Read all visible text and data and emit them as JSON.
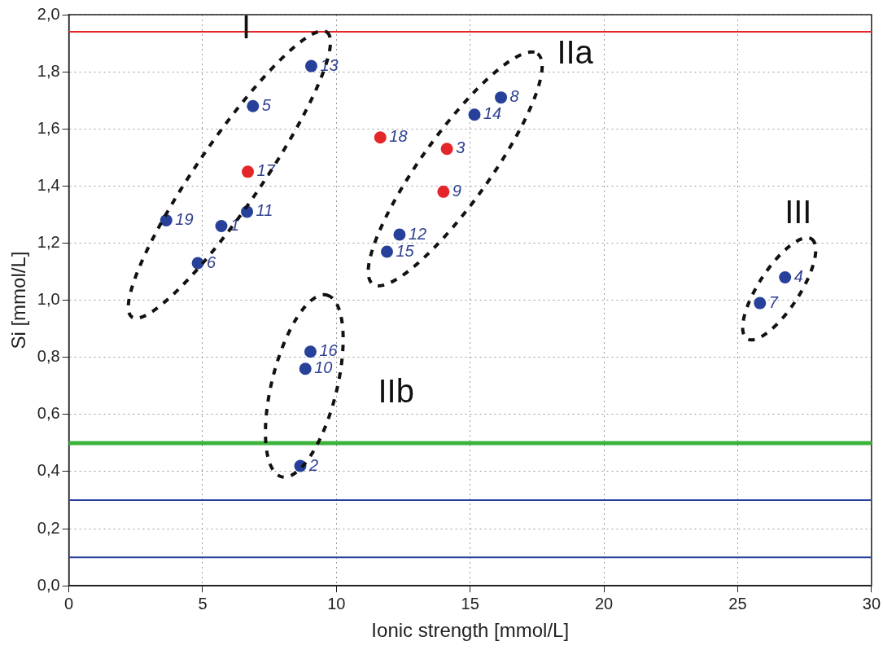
{
  "chart_data": {
    "type": "scatter",
    "xlabel": "Ionic strength [mmol/L]",
    "ylabel": "Si [mmol/L]",
    "xlim": [
      0,
      30
    ],
    "xticks": [
      0,
      5,
      10,
      15,
      20,
      25,
      30
    ],
    "ylim": [
      0,
      2.0
    ],
    "yticks": [
      {
        "value": 0,
        "label": "0,0"
      },
      {
        "value": 0.2,
        "label": "0,2"
      },
      {
        "value": 0.4,
        "label": "0,4"
      },
      {
        "value": 0.6,
        "label": "0,6"
      },
      {
        "value": 0.8,
        "label": "0,8"
      },
      {
        "value": 1.0,
        "label": "1,0"
      },
      {
        "value": 1.2,
        "label": "1,2"
      },
      {
        "value": 1.4,
        "label": "1,4"
      },
      {
        "value": 1.6,
        "label": "1,6"
      },
      {
        "value": 1.8,
        "label": "1,8"
      },
      {
        "value": 2.0,
        "label": "2,0"
      }
    ],
    "grid": true,
    "legend": false,
    "marker": "circle",
    "series": [
      {
        "color": "#27419a",
        "x": [
          9.06,
          6.88,
          3.64,
          5.7,
          6.66,
          4.82,
          9.03,
          8.84,
          8.65,
          15.16,
          16.15,
          12.36,
          11.89,
          26.77,
          25.83
        ],
        "values": [
          1.82,
          1.68,
          1.28,
          1.26,
          1.31,
          1.13,
          0.82,
          0.76,
          0.42,
          1.65,
          1.71,
          1.23,
          1.17,
          1.08,
          0.99
        ]
      },
      {
        "color": "#e4262a",
        "x": [
          6.69,
          11.64,
          14.13,
          14.0
        ],
        "values": [
          1.45,
          1.57,
          1.53,
          1.38
        ]
      }
    ],
    "ref_lines": [
      {
        "axis": "y",
        "value": 1.94,
        "color": "#e4262a"
      },
      {
        "axis": "y",
        "value": 0.5,
        "color": "#3cb43c"
      },
      {
        "axis": "y",
        "value": 0.3,
        "color": "#27419a"
      },
      {
        "axis": "y",
        "value": 0.1,
        "color": "#27419a"
      }
    ],
    "annotations": [
      "I",
      "IIa",
      "IIb",
      "III",
      {
        "text": "13",
        "x": 9.06,
        "y": 1.82
      },
      {
        "text": "5",
        "x": 6.88,
        "y": 1.68
      },
      {
        "text": "19",
        "x": 3.64,
        "y": 1.28
      },
      {
        "text": "1",
        "x": 5.7,
        "y": 1.26
      },
      {
        "text": "11",
        "x": 6.66,
        "y": 1.31
      },
      {
        "text": "6",
        "x": 4.82,
        "y": 1.13
      },
      {
        "text": "16",
        "x": 9.03,
        "y": 0.82
      },
      {
        "text": "10",
        "x": 8.84,
        "y": 0.76
      },
      {
        "text": "2",
        "x": 8.65,
        "y": 0.42
      },
      {
        "text": "14",
        "x": 15.16,
        "y": 1.65
      },
      {
        "text": "8",
        "x": 16.15,
        "y": 1.71
      },
      {
        "text": "12",
        "x": 12.36,
        "y": 1.23
      },
      {
        "text": "15",
        "x": 11.89,
        "y": 1.17
      },
      {
        "text": "4",
        "x": 26.77,
        "y": 1.08
      },
      {
        "text": "7",
        "x": 25.83,
        "y": 0.99
      },
      {
        "text": "17",
        "x": 6.69,
        "y": 1.45
      },
      {
        "text": "18",
        "x": 11.64,
        "y": 1.57
      },
      {
        "text": "3",
        "x": 14.13,
        "y": 1.53
      },
      {
        "text": "9",
        "x": 14.0,
        "y": 1.38
      }
    ]
  }
}
